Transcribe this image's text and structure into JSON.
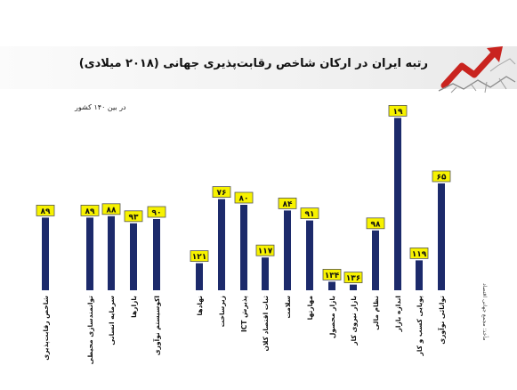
{
  "title": "رتبه ایران در ارکان شاخص رقابت‌پذیری جهانی (۲۰۱۸ میلادی)",
  "unit_note": "در بین ۱۴۰ کشور",
  "source_note": "مأخذ: مجمع جهانی اقتصاد",
  "colors": {
    "bar": "#1c2a6b",
    "label_bg": "#f7f200",
    "label_border": "#555555",
    "text": "#111111"
  },
  "logo": {
    "icon": "red-arrow-rising-from-cracked-ground-icon"
  },
  "chart_data": {
    "type": "bar",
    "title": "رتبه ایران در ارکان شاخص رقابت‌پذیری جهانی (۲۰۱۸ میلادی)",
    "ylabel": "در بین ۱۴۰ کشور",
    "ylim": [
      0,
      140
    ],
    "inverted": true,
    "grid": false,
    "legend": "none",
    "categories": [
      "شاخص رقابت‌پذیری",
      "توانمندسازی محیطی",
      "سرمایه انسانی",
      "بازارها",
      "اکوسیستم نوآوری",
      "نهادها",
      "زیرساخت",
      "پذیرش ICT",
      "ثبات اقتصاد کلان",
      "سلامت",
      "مهارتها",
      "بازار محصول",
      "بازار نیروی کار",
      "نظام مالی",
      "اندازه بازار",
      "پویایی کسب و کار",
      "توانائی نوآوری"
    ],
    "values": [
      89,
      89,
      88,
      93,
      90,
      121,
      76,
      80,
      117,
      84,
      91,
      134,
      136,
      98,
      19,
      119,
      65
    ],
    "value_labels": [
      "۸۹",
      "۸۹",
      "۸۸",
      "۹۳",
      "۹۰",
      "۱۲۱",
      "۷۶",
      "۸۰",
      "۱۱۷",
      "۸۴",
      "۹۱",
      "۱۳۴",
      "۱۳۶",
      "۹۸",
      "۱۹",
      "۱۱۹",
      "۶۵"
    ]
  }
}
